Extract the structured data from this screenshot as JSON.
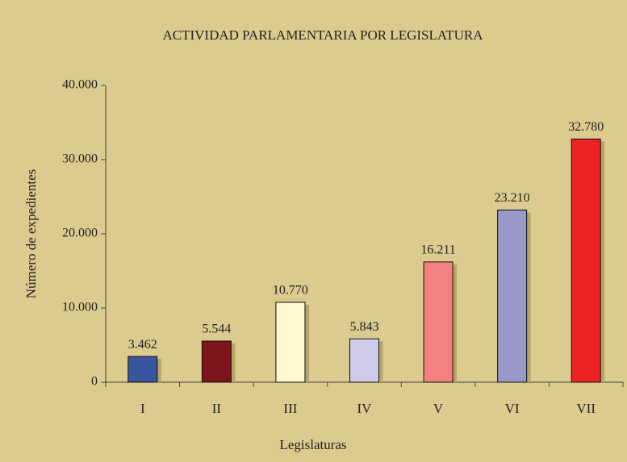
{
  "chart_data": {
    "type": "bar",
    "title": "ACTIVIDAD PARLAMENTARIA POR LEGISLATURA",
    "x_label": "Legislaturas",
    "y_label": "Número de expedientes",
    "categories": [
      "I",
      "II",
      "III",
      "IV",
      "V",
      "VI",
      "VII"
    ],
    "values": [
      3462,
      5544,
      10770,
      5843,
      16211,
      23210,
      32780
    ],
    "value_labels": [
      "3.462",
      "5.544",
      "10.770",
      "5.843",
      "16.211",
      "23.210",
      "32.780"
    ],
    "colors": [
      "#3a55a0",
      "#7c141a",
      "#fdf8d0",
      "#cdcbe8",
      "#f48080",
      "#9898c9",
      "#ee2222"
    ],
    "ylim": [
      0,
      40000
    ],
    "yticks": [
      0,
      {
        "value": 10000,
        "label": "10.000"
      },
      {
        "value": 20000,
        "label": "20.000"
      },
      {
        "value": 30000,
        "label": "30.000"
      },
      {
        "value": 40000,
        "label": "40.000"
      }
    ]
  }
}
